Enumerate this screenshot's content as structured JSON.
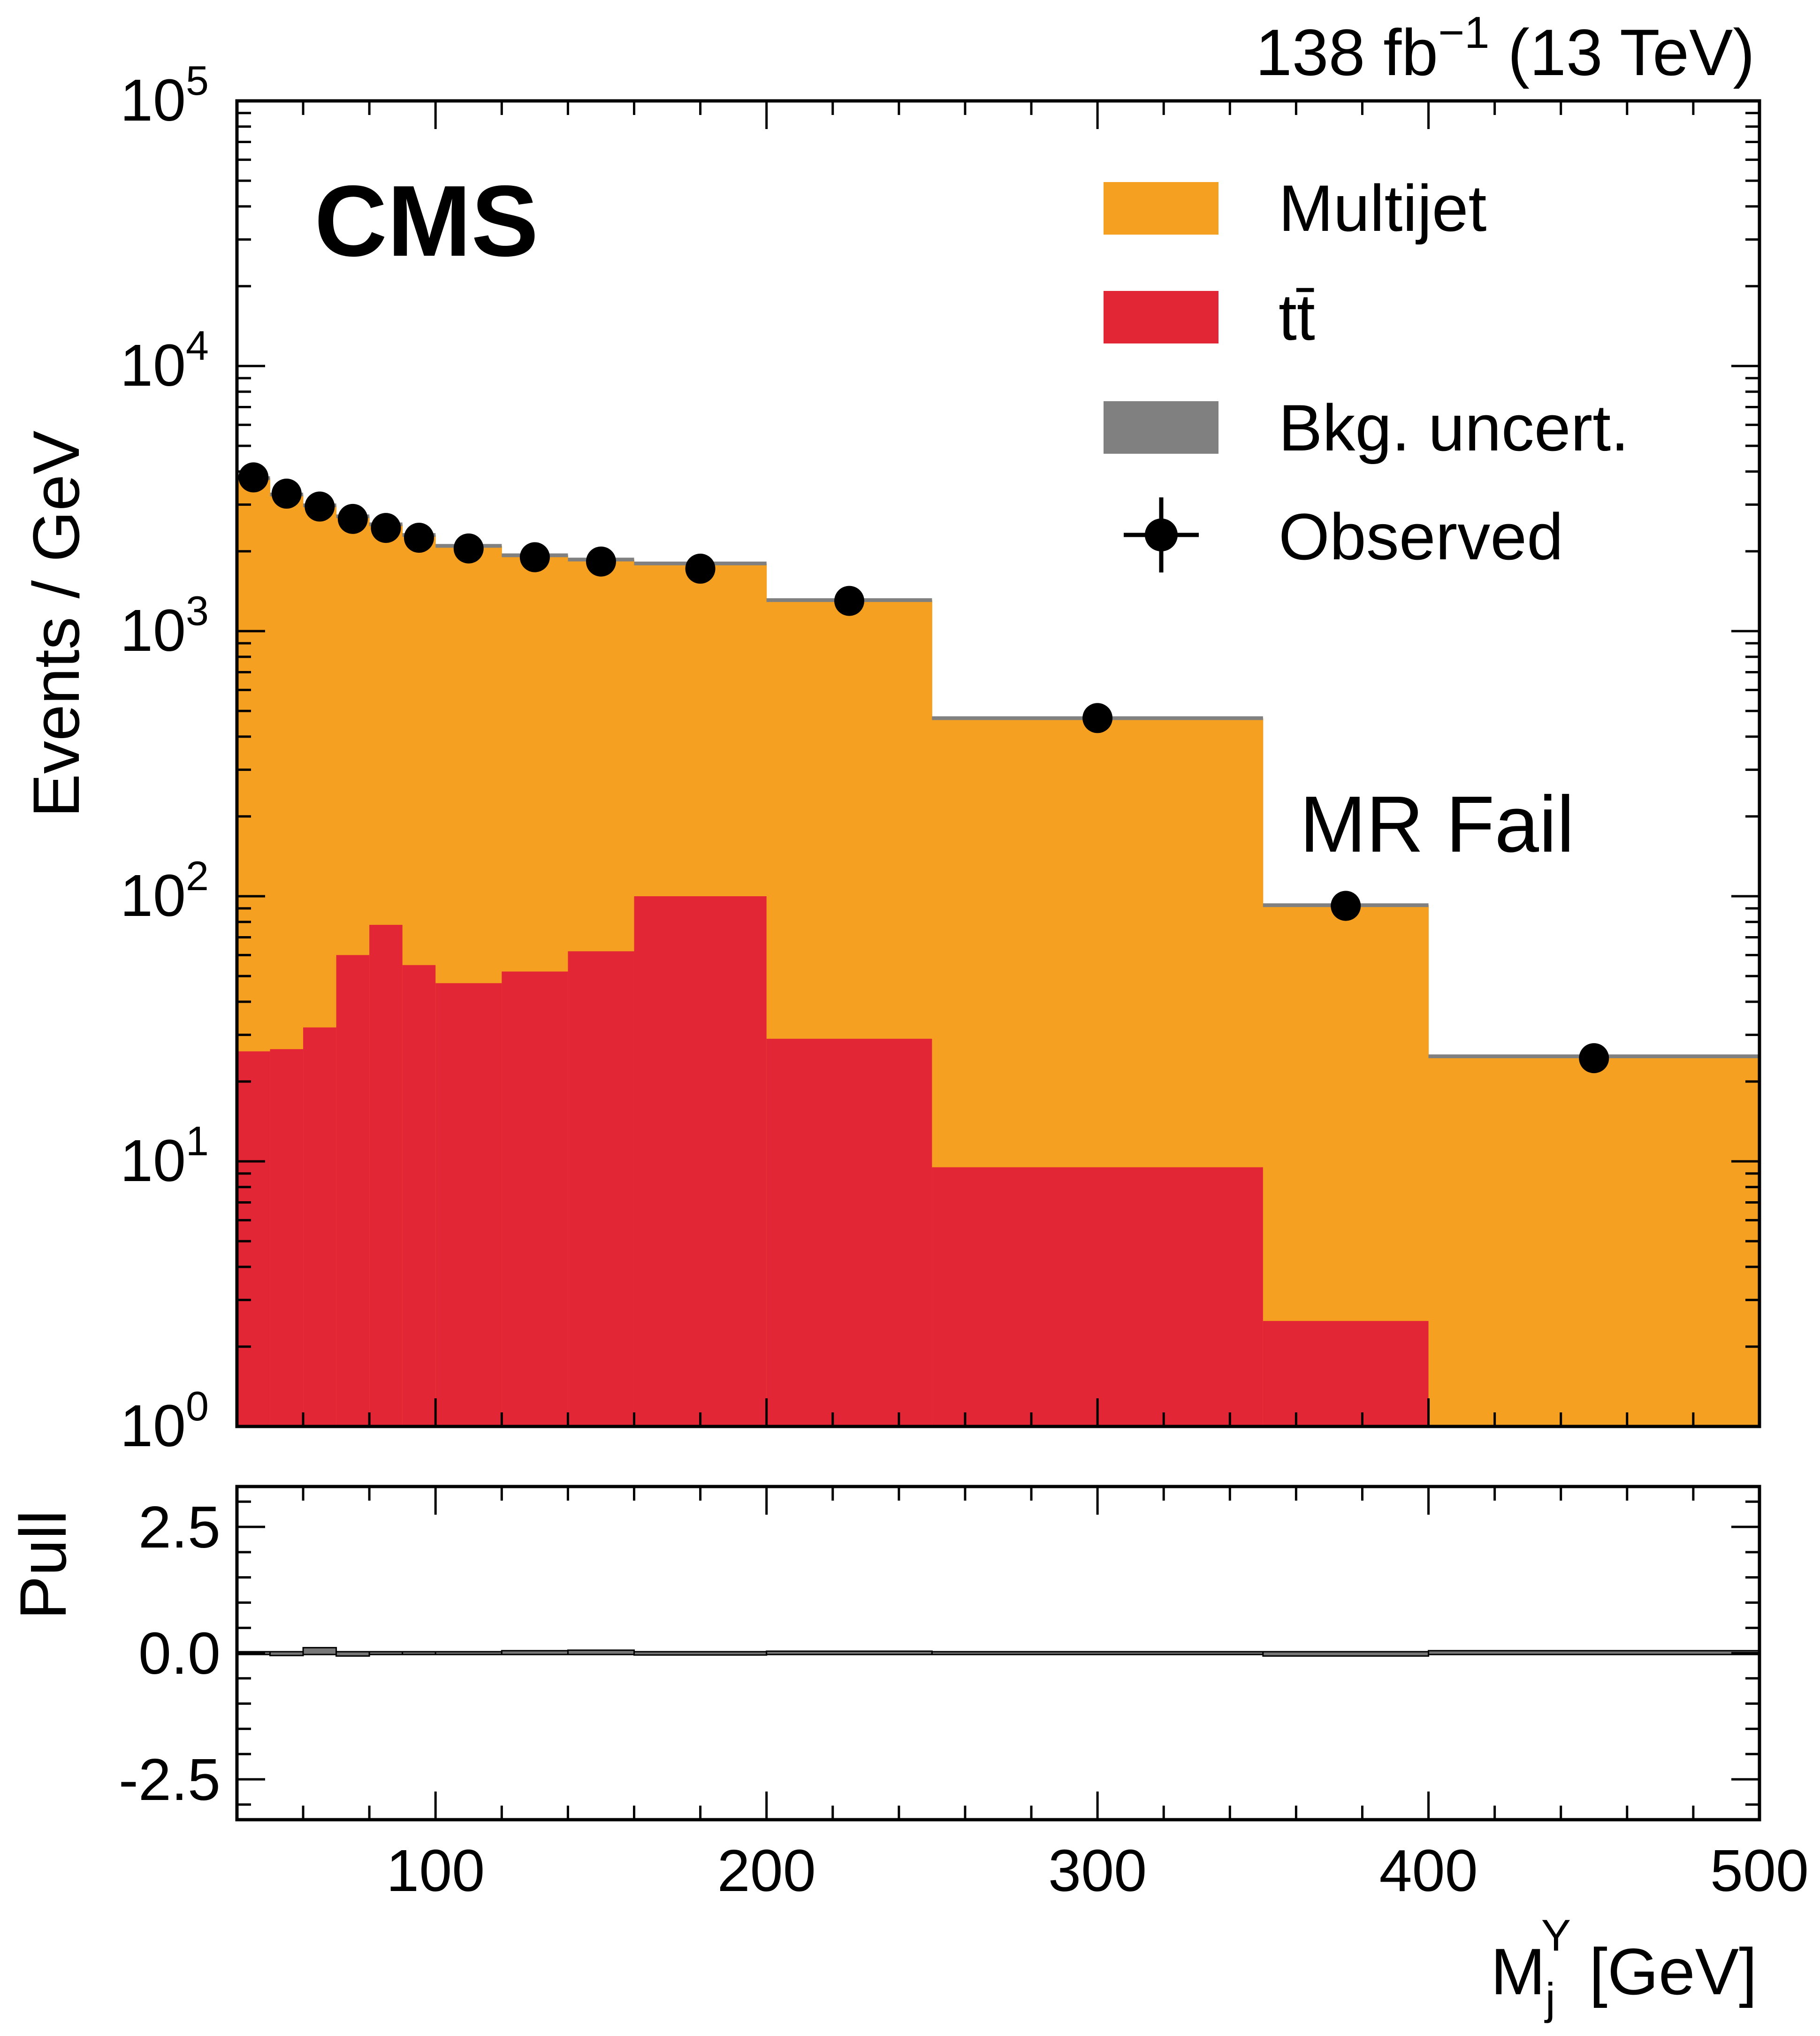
{
  "chart_data": {
    "type": "bar",
    "stacked": true,
    "experiment_label": "CMS",
    "lumi_label": "138 fb",
    "lumi_exponent": "−1",
    "energy_label": " (13 TeV)",
    "region_label": "MR Fail",
    "xlabel": {
      "main": "M",
      "sub": "j",
      "sup": "Y",
      "unit": " [GeV]"
    },
    "ylabel": "Events / GeV",
    "ratio_ylabel": "Pull",
    "xlim": [
      40,
      500
    ],
    "ylim": [
      1,
      100000
    ],
    "yscale": "log",
    "ratio_ylim": [
      -3.3,
      3.3
    ],
    "x_ticks": [
      "100",
      "200",
      "300",
      "400",
      "500"
    ],
    "y_ticks": [
      {
        "base": "10",
        "exp": "0"
      },
      {
        "base": "10",
        "exp": "1"
      },
      {
        "base": "10",
        "exp": "2"
      },
      {
        "base": "10",
        "exp": "3"
      },
      {
        "base": "10",
        "exp": "4"
      },
      {
        "base": "10",
        "exp": "5"
      }
    ],
    "ratio_y_ticks": [
      "2.5",
      "0.0",
      "-2.5"
    ],
    "bins": [
      {
        "lo": 40,
        "hi": 50,
        "multijet": 3750,
        "ttbar": 26,
        "observed": 3800,
        "pull": 0.0
      },
      {
        "lo": 50,
        "hi": 60,
        "multijet": 3250,
        "ttbar": 26.5,
        "observed": 3300,
        "pull": -0.02
      },
      {
        "lo": 60,
        "hi": 70,
        "multijet": 2950,
        "ttbar": 32,
        "observed": 2950,
        "pull": 0.08
      },
      {
        "lo": 70,
        "hi": 80,
        "multijet": 2650,
        "ttbar": 60,
        "observed": 2650,
        "pull": -0.03
      },
      {
        "lo": 80,
        "hi": 90,
        "multijet": 2450,
        "ttbar": 78,
        "observed": 2450,
        "pull": 0.0
      },
      {
        "lo": 90,
        "hi": 100,
        "multijet": 2250,
        "ttbar": 55,
        "observed": 2250,
        "pull": 0.0
      },
      {
        "lo": 100,
        "hi": 120,
        "multijet": 2050,
        "ttbar": 47,
        "observed": 2050,
        "pull": 0.0
      },
      {
        "lo": 120,
        "hi": 140,
        "multijet": 1880,
        "ttbar": 52,
        "observed": 1900,
        "pull": 0.02
      },
      {
        "lo": 140,
        "hi": 160,
        "multijet": 1800,
        "ttbar": 62,
        "observed": 1830,
        "pull": 0.03
      },
      {
        "lo": 160,
        "hi": 200,
        "multijet": 1700,
        "ttbar": 100,
        "observed": 1720,
        "pull": -0.01
      },
      {
        "lo": 200,
        "hi": 250,
        "multijet": 1280,
        "ttbar": 29,
        "observed": 1300,
        "pull": 0.01
      },
      {
        "lo": 250,
        "hi": 350,
        "multijet": 460,
        "ttbar": 9.5,
        "observed": 470,
        "pull": 0.0
      },
      {
        "lo": 350,
        "hi": 400,
        "multijet": 90,
        "ttbar": 2.5,
        "observed": 92,
        "pull": -0.03
      },
      {
        "lo": 400,
        "hi": 500,
        "multijet": 24,
        "ttbar": 0.9,
        "observed": 24.5,
        "pull": 0.02
      }
    ],
    "series": [
      {
        "name": "Multijet",
        "color": "#f5a020"
      },
      {
        "name": "tt̄",
        "color": "#e32636"
      },
      {
        "name": "Bkg. uncert.",
        "color": "#808080"
      },
      {
        "name": "Observed",
        "color": "#000000"
      }
    ],
    "legend_position": "top-right",
    "grid": false
  }
}
